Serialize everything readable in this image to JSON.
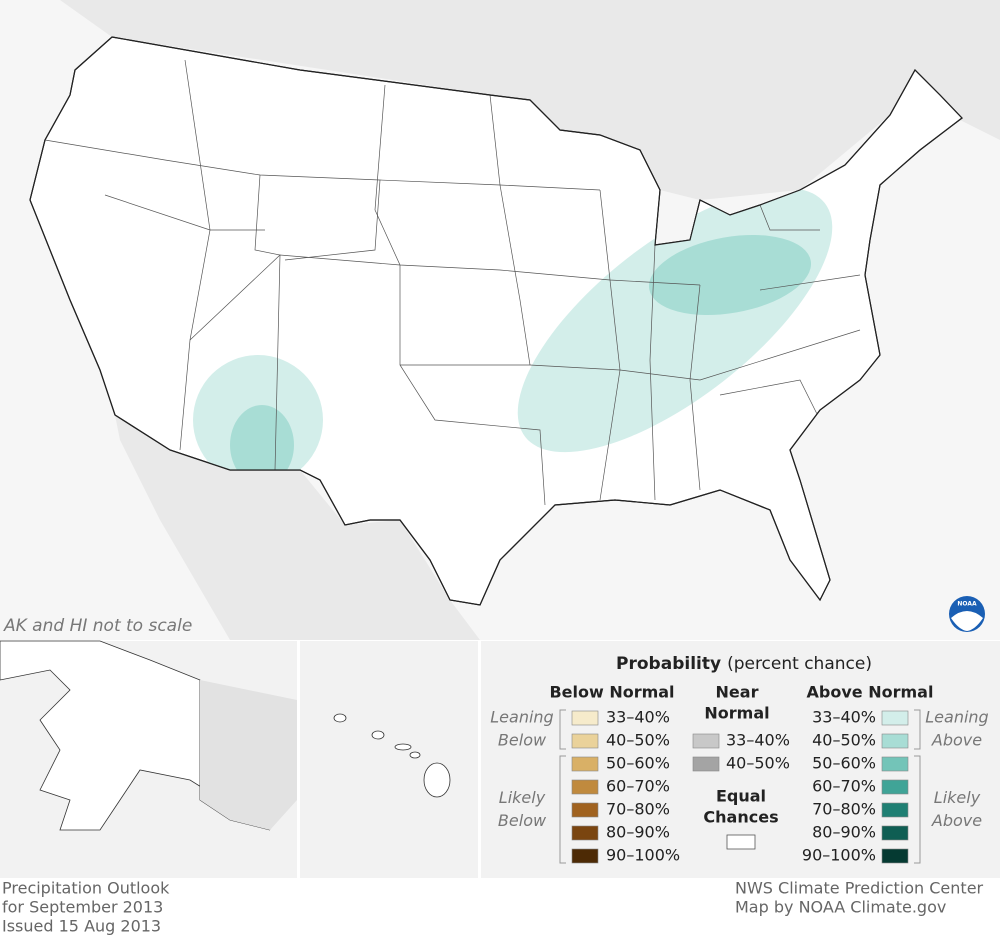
{
  "map": {
    "note": "AK and HI not to scale"
  },
  "legend": {
    "title": "Probability",
    "subtitle": "(percent chance)",
    "below": {
      "heading": "Below Normal",
      "leaning": [
        "Leaning",
        "Below"
      ],
      "likely": [
        "Likely",
        "Below"
      ],
      "entries": [
        {
          "label": "33–40%",
          "color": "#f6ebcb"
        },
        {
          "label": "40–50%",
          "color": "#ead29a"
        },
        {
          "label": "50–60%",
          "color": "#d9b066"
        },
        {
          "label": "60–70%",
          "color": "#c08a3e"
        },
        {
          "label": "70–80%",
          "color": "#a0621f"
        },
        {
          "label": "80–90%",
          "color": "#7a4510"
        },
        {
          "label": "90–100%",
          "color": "#4d2a05"
        }
      ]
    },
    "near": {
      "heading": [
        "Near",
        "Normal"
      ],
      "entries": [
        {
          "label": "33–40%",
          "color": "#c8c8c8"
        },
        {
          "label": "40–50%",
          "color": "#a4a4a4"
        }
      ]
    },
    "equal": {
      "heading": [
        "Equal",
        "Chances"
      ],
      "color": "#ffffff"
    },
    "above": {
      "heading": "Above Normal",
      "leaning": [
        "Leaning",
        "Above"
      ],
      "likely": [
        "Likely",
        "Above"
      ],
      "entries": [
        {
          "label": "33–40%",
          "color": "#d3eeea"
        },
        {
          "label": "40–50%",
          "color": "#a8ddd5"
        },
        {
          "label": "50–60%",
          "color": "#73c4b8"
        },
        {
          "label": "60–70%",
          "color": "#40a497"
        },
        {
          "label": "70–80%",
          "color": "#1f7f73"
        },
        {
          "label": "80–90%",
          "color": "#0f5e53"
        },
        {
          "label": "90–100%",
          "color": "#053a32"
        }
      ]
    }
  },
  "footer": {
    "left": [
      "Precipitation Outlook",
      "for September 2013",
      "Issued 15 Aug 2013"
    ],
    "right": [
      "NWS Climate Prediction Center",
      "Map by NOAA Climate.gov"
    ]
  }
}
